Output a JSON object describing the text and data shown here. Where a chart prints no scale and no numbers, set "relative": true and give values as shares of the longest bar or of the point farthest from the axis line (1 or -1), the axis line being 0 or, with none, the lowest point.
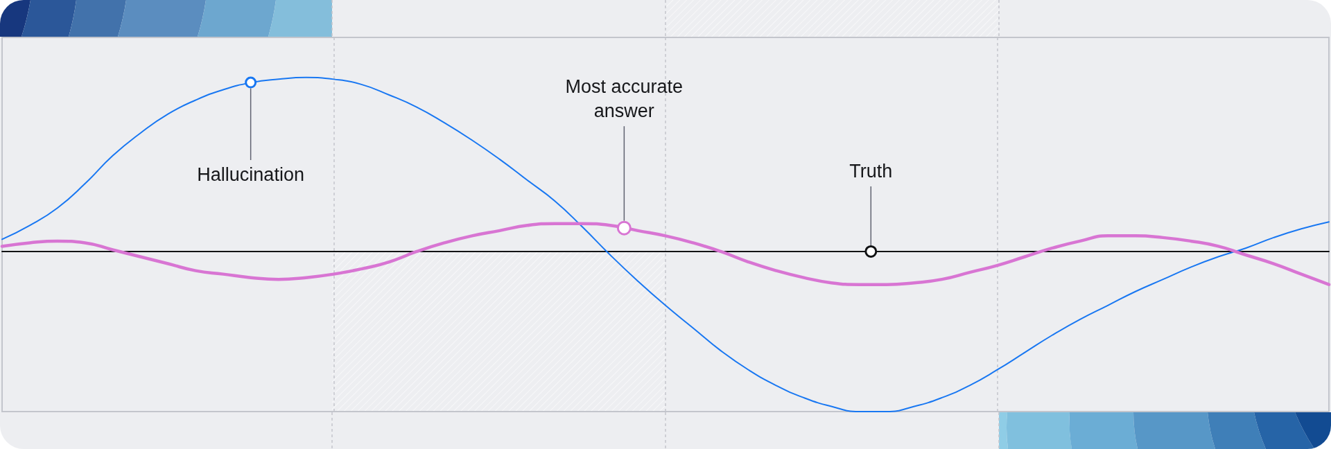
{
  "chart_data": {
    "type": "line",
    "relative": true,
    "categories": [
      null,
      null,
      null,
      null,
      null,
      null,
      null,
      null,
      null,
      null,
      null,
      null,
      null,
      null,
      null,
      null,
      null,
      null,
      null,
      null,
      null,
      null,
      null,
      null,
      null,
      null,
      null,
      null,
      null,
      null,
      null,
      null,
      null,
      null,
      null,
      null,
      null,
      null,
      null,
      null,
      null,
      null,
      null,
      null,
      null,
      null,
      null,
      null,
      null
    ],
    "series": [
      {
        "color": "#1877f2",
        "values": [
          0.07,
          0.15,
          0.25,
          0.39,
          0.55,
          0.68,
          0.79,
          0.87,
          0.93,
          0.97,
          0.99,
          1,
          0.99,
          0.96,
          0.9,
          0.83,
          0.74,
          0.64,
          0.53,
          0.41,
          0.29,
          0.14,
          -0.02,
          -0.17,
          -0.31,
          -0.44,
          -0.57,
          -0.68,
          -0.77,
          -0.84,
          -0.89,
          -0.92,
          -0.92,
          -0.89,
          -0.84,
          -0.77,
          -0.68,
          -0.58,
          -0.48,
          -0.39,
          -0.31,
          -0.23,
          -0.16,
          -0.09,
          -0.03,
          0.02,
          0.08,
          0.13,
          0.17
        ]
      },
      {
        "color": "#d875d3",
        "values": [
          0.03,
          0.05,
          0.06,
          0.05,
          0.01,
          -0.03,
          -0.07,
          -0.11,
          -0.13,
          -0.15,
          -0.16,
          -0.15,
          -0.13,
          -0.1,
          -0.06,
          0,
          0.05,
          0.09,
          0.12,
          0.15,
          0.16,
          0.16,
          0.15,
          0.12,
          0.09,
          0.05,
          0,
          -0.06,
          -0.11,
          -0.15,
          -0.18,
          -0.19,
          -0.19,
          -0.18,
          -0.16,
          -0.12,
          -0.08,
          -0.03,
          0.02,
          0.06,
          0.09,
          0.09,
          0.08,
          0.06,
          0.03,
          -0.02,
          -0.07,
          -0.13,
          -0.19
        ]
      }
    ],
    "grid": "x",
    "annotations": [
      "Hallucination",
      "Most accurate answer",
      "Truth"
    ]
  }
}
